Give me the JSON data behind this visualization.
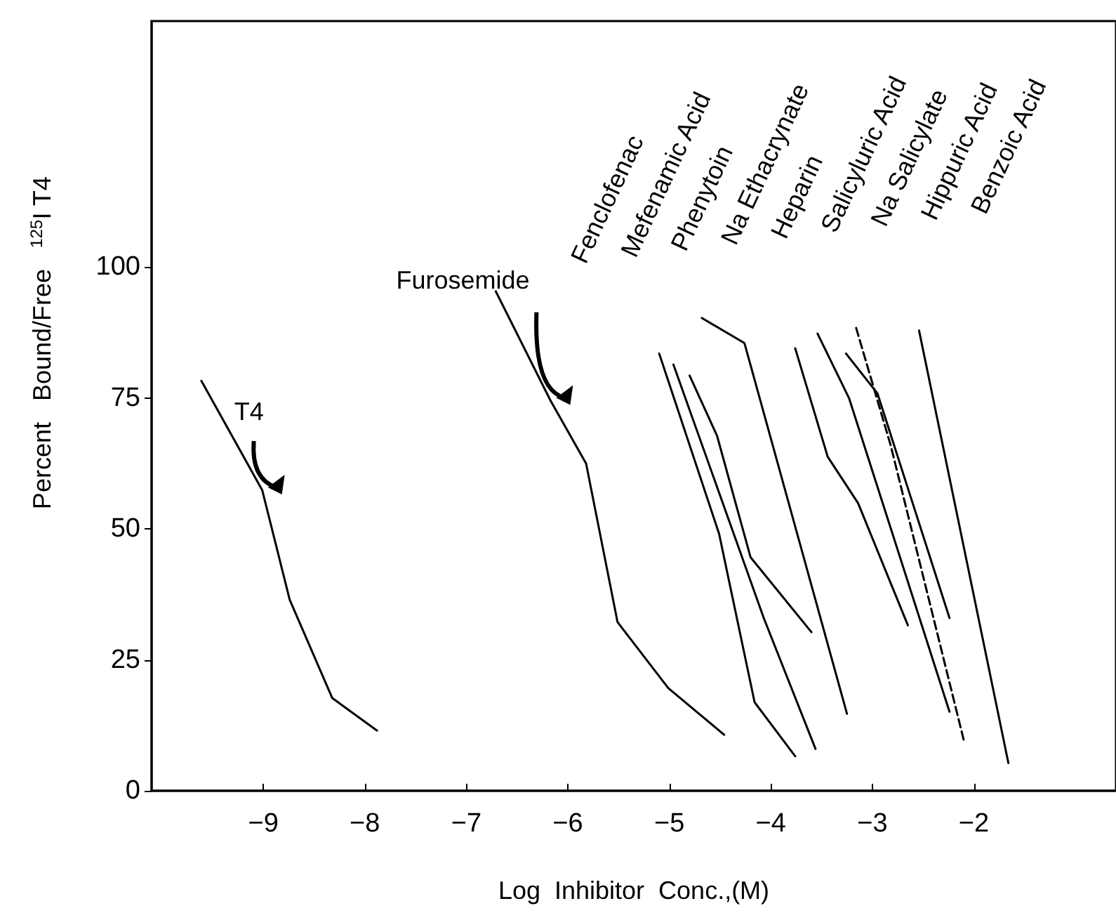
{
  "chart_data": {
    "type": "line",
    "xlabel": "Log  Inhibitor  Conc.,(M)",
    "ylabel": "Percent   Bound/Free   $^{125}$I T4",
    "xlim": [
      -10.1,
      -0.6
    ],
    "ylim": [
      0,
      147
    ],
    "xticks": [
      -9,
      -8,
      -7,
      -6,
      -5,
      -4,
      -3,
      -2
    ],
    "yticks": [
      0,
      25,
      50,
      75,
      100
    ],
    "grid": false,
    "legend": false,
    "marker": "none",
    "line_style": "solid",
    "annotations": [
      "Fenclofenac",
      "Mefenamic Acid",
      "Phenytoin",
      "Na Ethacrynate",
      "Heparin",
      "Salicyluric Acid",
      "Na Salicylate",
      "Hippuric Acid",
      "Benzoic Acid"
    ],
    "series": [
      {
        "name": "T4",
        "color": "#000000",
        "x": [
          -9.61,
          -9.01,
          -8.74,
          -8.32,
          -7.88
        ],
        "values": [
          78.3,
          57.4,
          36.5,
          17.7,
          11.5
        ]
      },
      {
        "name": "Furosemide",
        "color": "#000000",
        "x": [
          -6.71,
          -6.17,
          -5.82,
          -5.51,
          -5.01,
          -4.46
        ],
        "values": [
          95.4,
          74.5,
          62.5,
          32.2,
          19.6,
          10.7
        ]
      },
      {
        "color": "#000000",
        "x": [
          -5.1,
          -4.51,
          -4.16,
          -3.76
        ],
        "values": [
          83.5,
          49.1,
          16.9,
          6.6
        ]
      },
      {
        "color": "#000000",
        "x": [
          -4.96,
          -4.07,
          -3.56
        ],
        "values": [
          81.4,
          33.0,
          8.0
        ]
      },
      {
        "color": "#000000",
        "x": [
          -4.8,
          -4.53,
          -4.2,
          -3.6
        ],
        "values": [
          79.3,
          67.8,
          44.6,
          30.3
        ]
      },
      {
        "color": "#000000",
        "x": [
          -4.68,
          -4.26,
          -3.25
        ],
        "values": [
          90.3,
          85.5,
          14.7
        ]
      },
      {
        "color": "#000000",
        "x": [
          -3.76,
          -3.44,
          -3.14,
          -2.65
        ],
        "values": [
          84.5,
          63.8,
          54.9,
          31.6
        ]
      },
      {
        "color": "#000000",
        "x": [
          -3.54,
          -3.23,
          -2.24
        ],
        "values": [
          87.3,
          75.0,
          15.1
        ]
      },
      {
        "color": "#000000",
        "x": [
          -3.26,
          -2.95,
          -2.24
        ],
        "values": [
          83.5,
          75.9,
          33.0
        ]
      },
      {
        "color": "#000000",
        "line_style": "dashed",
        "x": [
          -3.16,
          -2.82,
          -2.1
        ],
        "values": [
          88.4,
          66.0,
          9.7
        ]
      },
      {
        "color": "#000000",
        "x": [
          -2.54,
          -1.66
        ],
        "values": [
          87.9,
          5.3
        ]
      }
    ]
  }
}
